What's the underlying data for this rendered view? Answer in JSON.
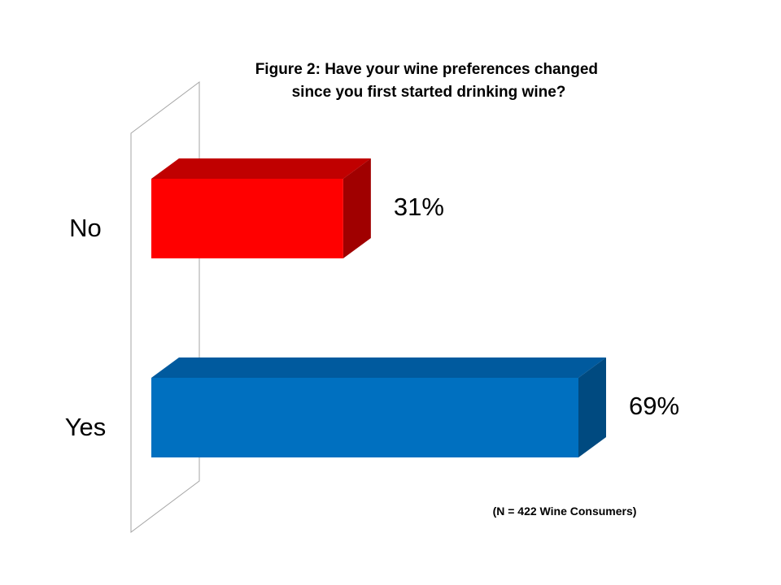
{
  "chart_data": {
    "type": "bar",
    "orientation": "horizontal",
    "style": "3d",
    "title": "Figure 2: Have your wine preferences changed since you first started drinking wine?",
    "title_lines": [
      "Figure 2: Have your wine preferences changed",
      "since you first started drinking wine?"
    ],
    "categories": [
      "No",
      "Yes"
    ],
    "values": [
      31,
      69
    ],
    "value_labels": [
      "31%",
      "69%"
    ],
    "value_unit": "%",
    "xlim": [
      0,
      100
    ],
    "grid": false,
    "legend": "none",
    "colors": {
      "No": {
        "front": "#ff0000",
        "top": "#c00000",
        "side": "#a00000"
      },
      "Yes": {
        "front": "#0070c0",
        "top": "#005a9e",
        "side": "#004a80"
      }
    },
    "annotation": "(N = 422 Wine Consumers)"
  }
}
